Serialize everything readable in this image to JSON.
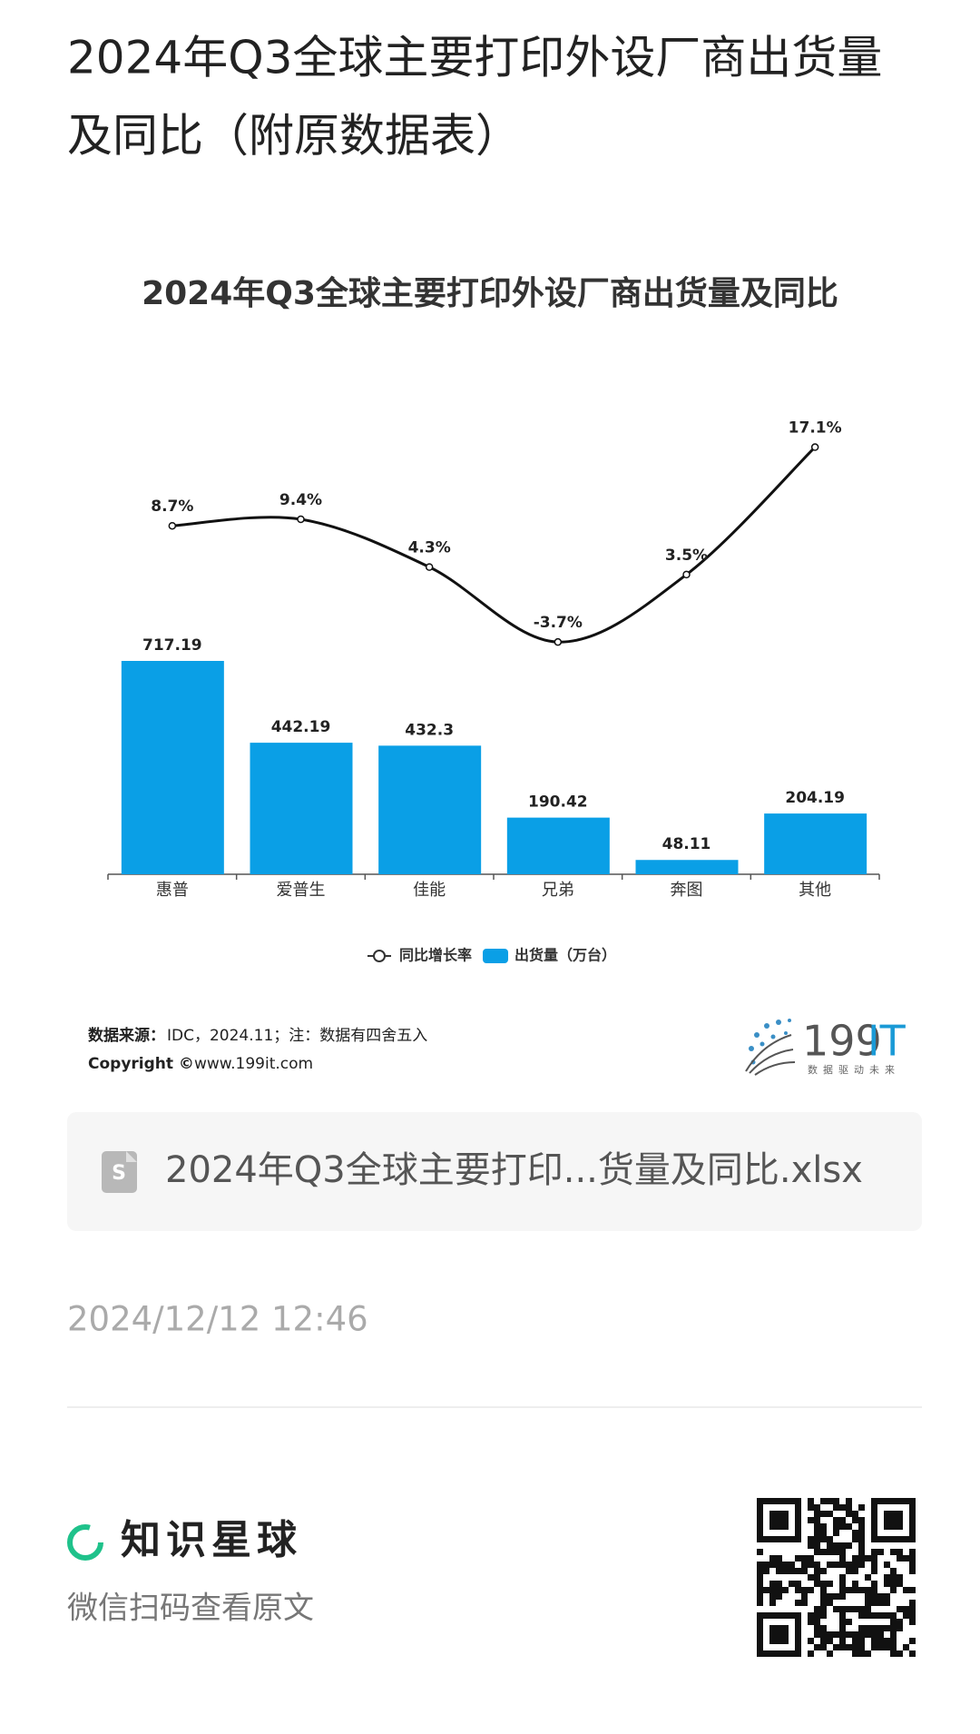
{
  "header": {
    "title_line1": "2024年Q3全球主要打印外设厂商出货量",
    "title_line2": "及同比（附原数据表）"
  },
  "chart_data": {
    "type": "bar",
    "title": "2024年Q3全球主要打印外设厂商出货量及同比",
    "categories": [
      "惠普",
      "爱普生",
      "佳能",
      "兄弟",
      "奔图",
      "其他"
    ],
    "series": [
      {
        "name": "出货量（万台）",
        "type": "bar",
        "color": "#0a9fe6",
        "values": [
          717.19,
          442.19,
          432.3,
          190.42,
          48.11,
          204.19
        ]
      },
      {
        "name": "同比增长率",
        "type": "line",
        "color": "#111111",
        "values": [
          8.7,
          9.4,
          4.3,
          -3.7,
          3.5,
          17.1
        ],
        "value_labels": [
          "8.7%",
          "9.4%",
          "4.3%",
          "-3.7%",
          "3.5%",
          "17.1%"
        ]
      }
    ],
    "source_label": "数据来源：",
    "source_text": "IDC，2024.11；注：数据有四舍五入",
    "copyright_label": "Copyright ©",
    "copyright_url": "www.199it.com",
    "logo": {
      "number": "199",
      "letters": "IT",
      "slogan": "数据驱动未来"
    }
  },
  "attachment": {
    "filename": "2024年Q3全球主要打印...货量及同比.xlsx"
  },
  "date": "2024/12/12 12:46",
  "footer": {
    "brand": "知识星球",
    "hint": "微信扫码查看原文"
  }
}
